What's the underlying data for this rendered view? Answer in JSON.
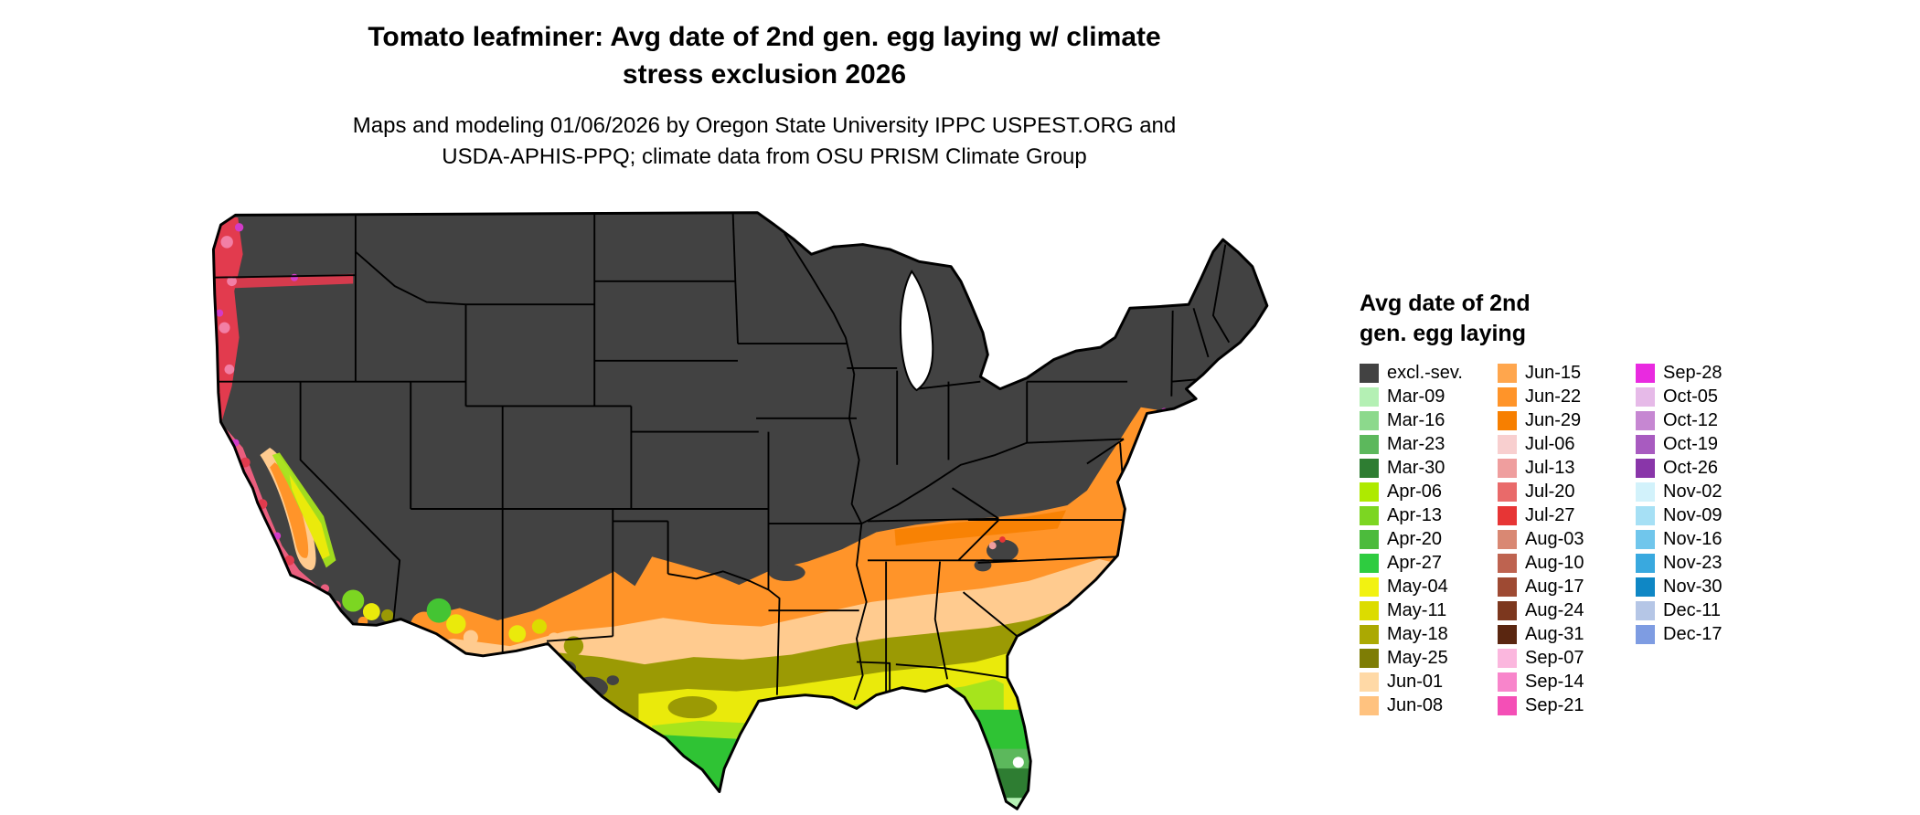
{
  "title": {
    "line1": "Tomato leafminer: Avg date of 2nd gen. egg laying w/ climate",
    "line2": "stress exclusion 2026"
  },
  "subtitle": {
    "line1": "Maps and modeling 01/06/2026 by Oregon State University IPPC USPEST.ORG and",
    "line2": "USDA-APHIS-PPQ; climate data from OSU PRISM Climate Group"
  },
  "map": {
    "region": "Contiguous United States",
    "excluded_color": "#424242",
    "background": "#ffffff"
  },
  "legend": {
    "title_line1": "Avg date of 2nd",
    "title_line2": "gen. egg laying",
    "columns": [
      [
        {
          "label": "excl.-sev.",
          "color": "#424242"
        },
        {
          "label": "Mar-09",
          "color": "#B4F0B4"
        },
        {
          "label": "Mar-16",
          "color": "#8CD98C"
        },
        {
          "label": "Mar-23",
          "color": "#5CB85C"
        },
        {
          "label": "Mar-30",
          "color": "#2E7D32"
        },
        {
          "label": "Apr-06",
          "color": "#AEEA00"
        },
        {
          "label": "Apr-13",
          "color": "#7CD622"
        },
        {
          "label": "Apr-20",
          "color": "#4CBB3C"
        },
        {
          "label": "Apr-27",
          "color": "#2ECC40"
        },
        {
          "label": "May-04",
          "color": "#F2F211"
        },
        {
          "label": "May-11",
          "color": "#DCDC00"
        },
        {
          "label": "May-18",
          "color": "#ABA902"
        },
        {
          "label": "May-25",
          "color": "#7E7D05"
        },
        {
          "label": "Jun-01",
          "color": "#FFD9A6"
        },
        {
          "label": "Jun-08",
          "color": "#FFC27F"
        }
      ],
      [
        {
          "label": "Jun-15",
          "color": "#FFA64D"
        },
        {
          "label": "Jun-22",
          "color": "#FF9429"
        },
        {
          "label": "Jun-29",
          "color": "#F77F00"
        },
        {
          "label": "Jul-06",
          "color": "#F8CFCF"
        },
        {
          "label": "Jul-13",
          "color": "#EF9E9E"
        },
        {
          "label": "Jul-20",
          "color": "#E96A6A"
        },
        {
          "label": "Jul-27",
          "color": "#E73535"
        },
        {
          "label": "Aug-03",
          "color": "#D98873"
        },
        {
          "label": "Aug-10",
          "color": "#BE6350"
        },
        {
          "label": "Aug-17",
          "color": "#9E4A33"
        },
        {
          "label": "Aug-24",
          "color": "#7C371E"
        },
        {
          "label": "Aug-31",
          "color": "#5A2610"
        },
        {
          "label": "Sep-07",
          "color": "#FBB7DE"
        },
        {
          "label": "Sep-14",
          "color": "#F885CB"
        },
        {
          "label": "Sep-21",
          "color": "#F44FB6"
        }
      ],
      [
        {
          "label": "Sep-28",
          "color": "#E92AE0"
        },
        {
          "label": "Oct-05",
          "color": "#E6BAE8"
        },
        {
          "label": "Oct-12",
          "color": "#C687D2"
        },
        {
          "label": "Oct-19",
          "color": "#A85BC0"
        },
        {
          "label": "Oct-26",
          "color": "#8936A9"
        },
        {
          "label": "Nov-02",
          "color": "#D2F2FB"
        },
        {
          "label": "Nov-09",
          "color": "#A6E0F5"
        },
        {
          "label": "Nov-16",
          "color": "#70C6EC"
        },
        {
          "label": "Nov-23",
          "color": "#39A9DF"
        },
        {
          "label": "Nov-30",
          "color": "#0F87C5"
        },
        {
          "label": "Dec-11",
          "color": "#B5C6E6"
        },
        {
          "label": "Dec-17",
          "color": "#7E9CE2"
        }
      ]
    ]
  }
}
